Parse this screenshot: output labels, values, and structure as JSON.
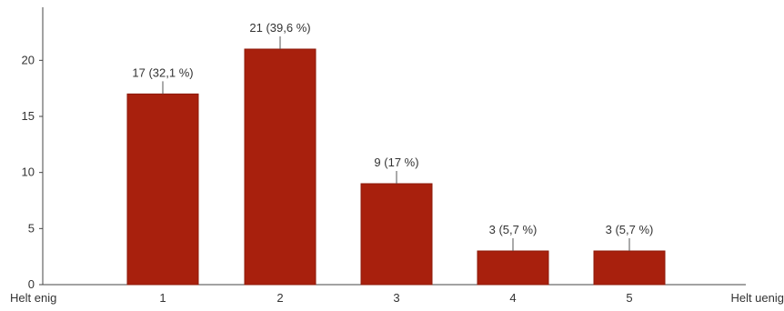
{
  "chart_data": {
    "type": "bar",
    "categories": [
      "1",
      "2",
      "3",
      "4",
      "5"
    ],
    "values": [
      17,
      21,
      9,
      3,
      3
    ],
    "data_labels": [
      "17 (32,1 %)",
      "21 (39,6 %)",
      "9 (17 %)",
      "3 (5,7 %)",
      "3 (5,7 %)"
    ],
    "yticks": [
      0,
      5,
      10,
      15,
      20
    ],
    "ylim": [
      0,
      24
    ],
    "x_end_labels": {
      "left": "Helt enig",
      "right": "Helt uenig"
    },
    "grid": false,
    "legend": "none",
    "colors": {
      "bar": "#a8200d",
      "bar_edge": "#8c1a0a"
    }
  }
}
